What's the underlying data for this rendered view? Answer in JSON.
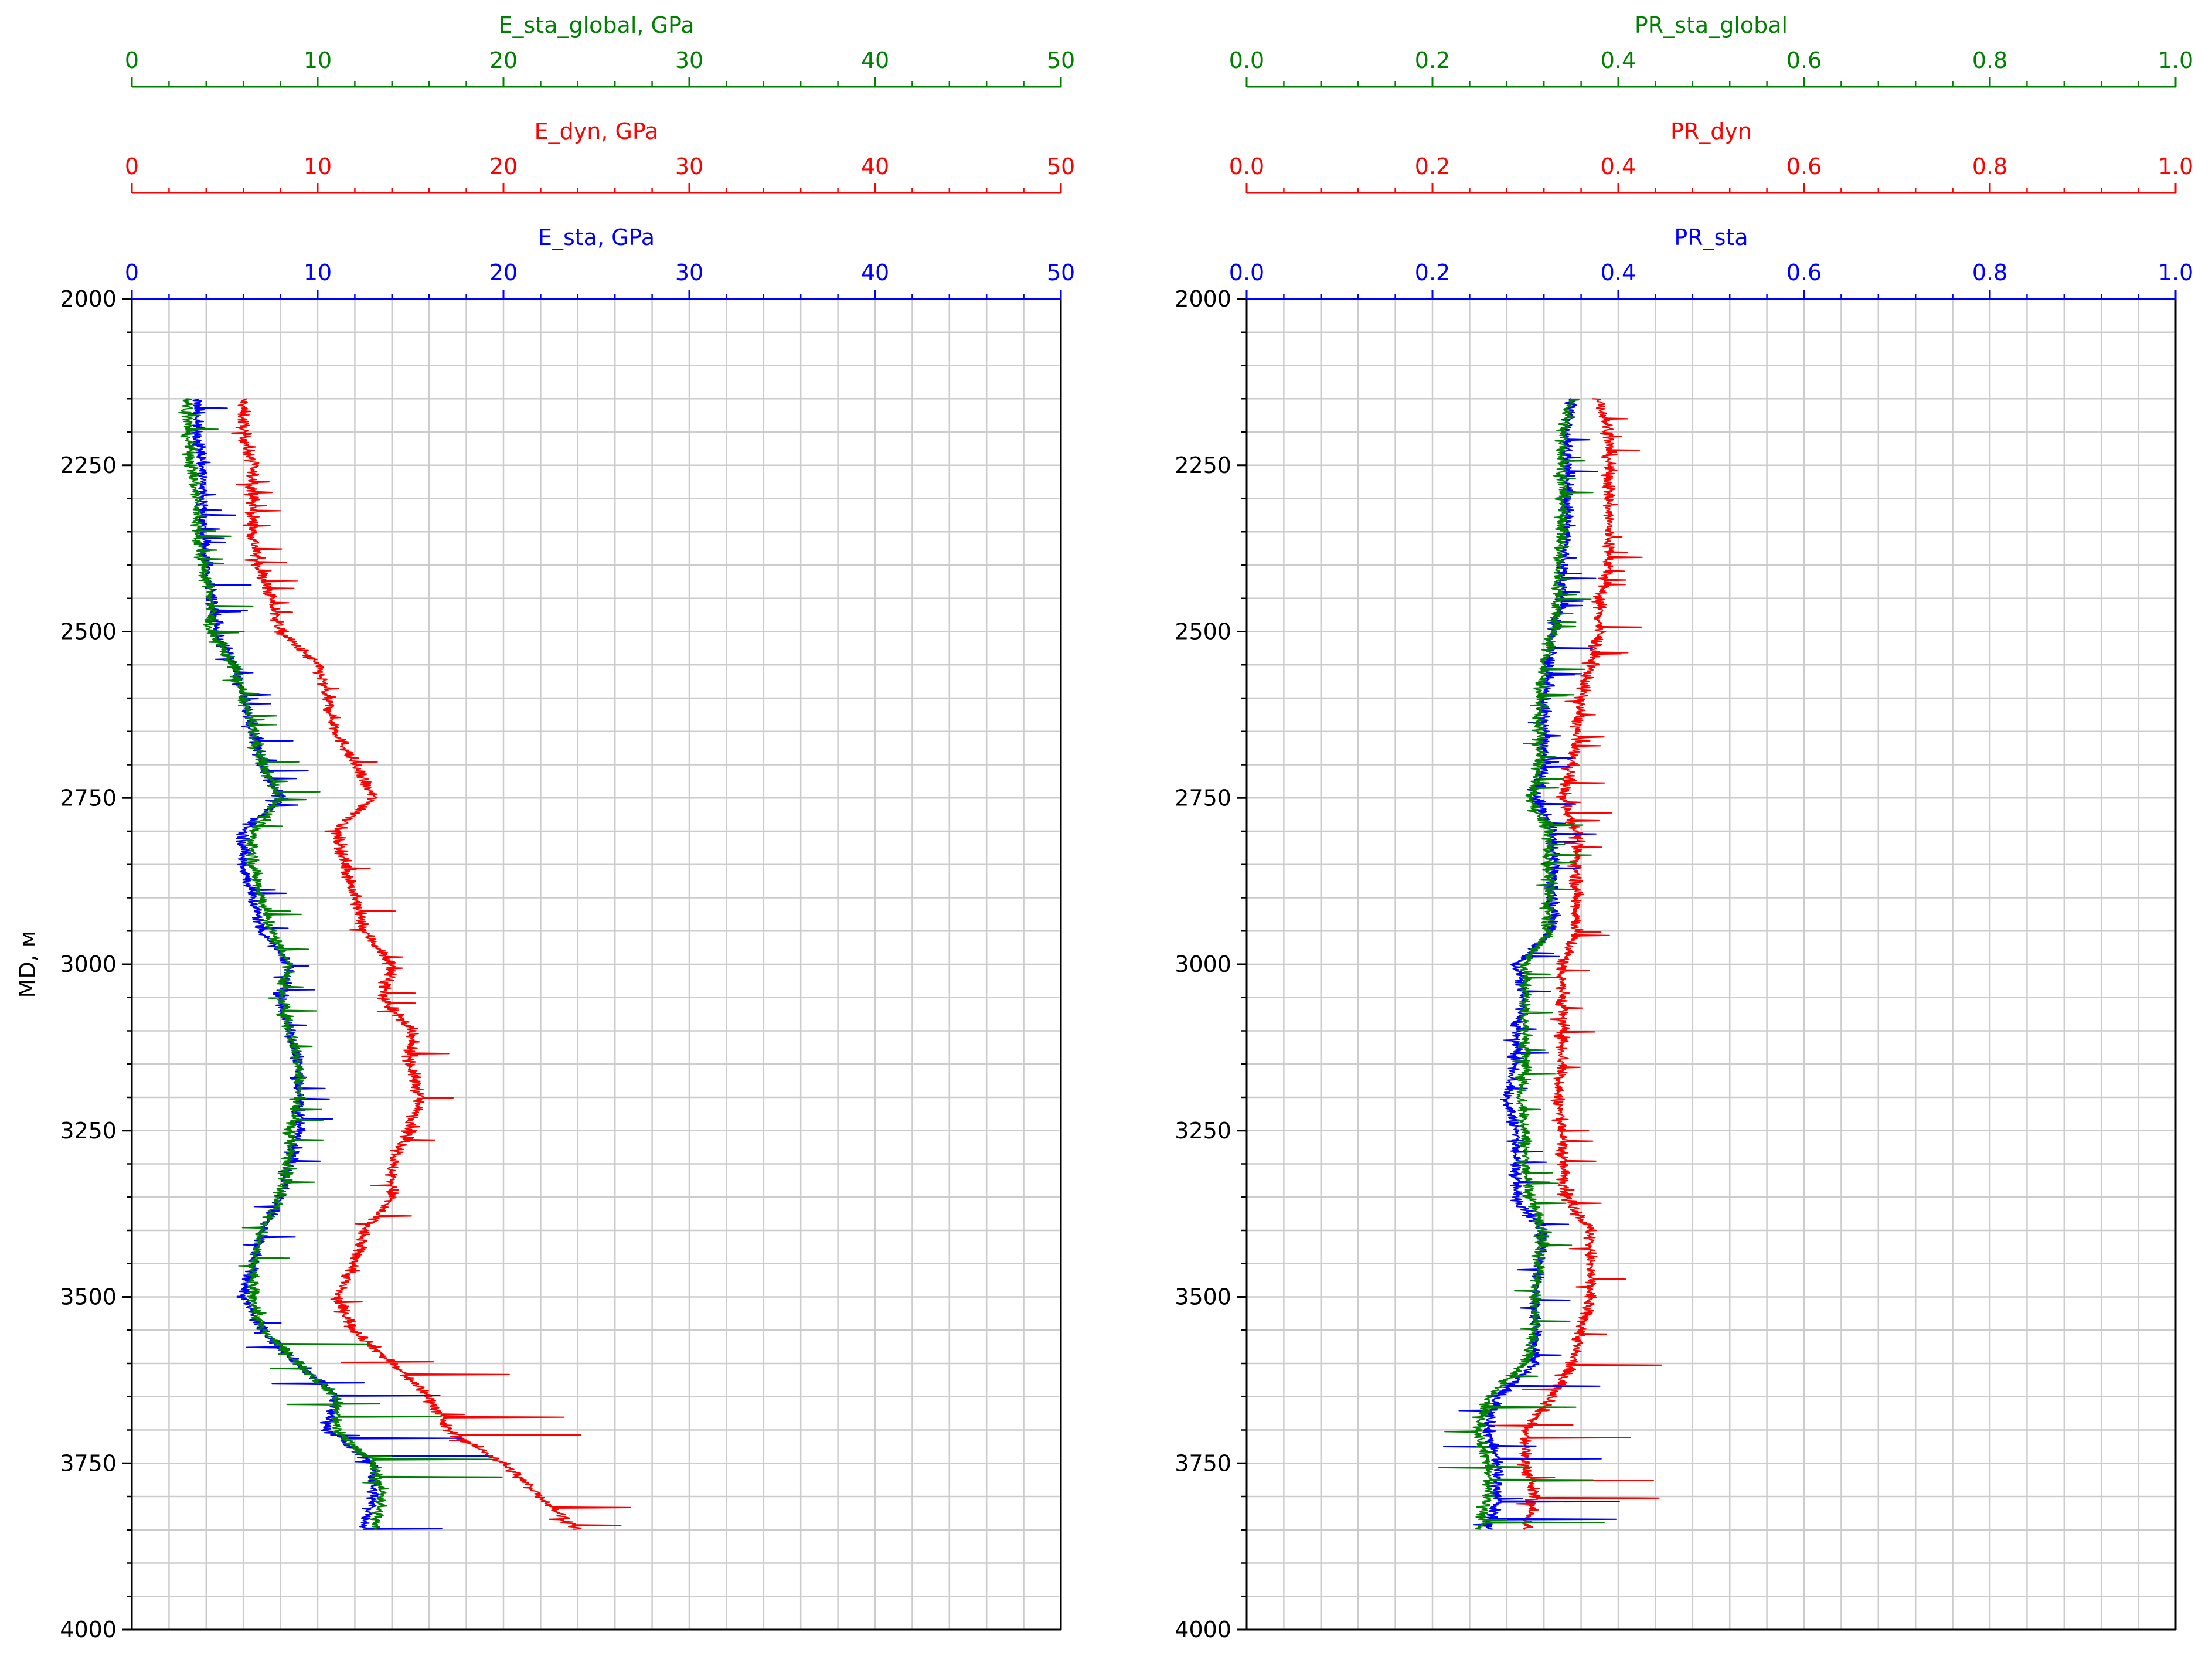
{
  "figure": {
    "y_axis_label": "MD, м",
    "depth_ticks": [
      2000,
      2250,
      2500,
      2750,
      3000,
      3250,
      3500,
      3750,
      4000
    ]
  },
  "colors": {
    "global": "#008000",
    "dyn": "#ff0000",
    "sta": "#0000ff",
    "grid": "#cccccc"
  },
  "chart_data": [
    {
      "type": "line",
      "orientation": "depth-vertical",
      "ylabel": "MD, м",
      "ylim": [
        2000,
        4000
      ],
      "y_inverted": true,
      "grid": true,
      "axes": [
        {
          "label": "E_sta_global, GPa",
          "color": "#008000",
          "xlim": [
            0,
            50
          ],
          "ticks": [
            "0",
            "10",
            "20",
            "30",
            "40",
            "50"
          ]
        },
        {
          "label": "E_dyn, GPa",
          "color": "#ff0000",
          "xlim": [
            0,
            50
          ],
          "ticks": [
            "0",
            "10",
            "20",
            "30",
            "40",
            "50"
          ]
        },
        {
          "label": "E_sta, GPa",
          "color": "#0000ff",
          "xlim": [
            0,
            50
          ],
          "ticks": [
            "0",
            "10",
            "20",
            "30",
            "40",
            "50"
          ]
        }
      ],
      "series": [
        {
          "name": "E_dyn, GPa",
          "color": "#ff0000",
          "depth": [
            2150,
            2200,
            2250,
            2300,
            2350,
            2400,
            2450,
            2500,
            2550,
            2600,
            2650,
            2700,
            2750,
            2800,
            2850,
            2900,
            2950,
            3000,
            3050,
            3100,
            3150,
            3200,
            3250,
            3300,
            3350,
            3400,
            3450,
            3500,
            3550,
            3600,
            3650,
            3700,
            3750,
            3800,
            3850
          ],
          "values": [
            6,
            6,
            6.5,
            6.5,
            6.5,
            6.8,
            7.5,
            8,
            10,
            10.5,
            11,
            12,
            13,
            11,
            11.5,
            12,
            12.5,
            14,
            13.5,
            15,
            15,
            15.5,
            15,
            14,
            14,
            12.5,
            12,
            11,
            12,
            14,
            16,
            17,
            20,
            22,
            24
          ]
        },
        {
          "name": "E_sta, GPa",
          "color": "#0000ff",
          "depth": [
            2150,
            2200,
            2250,
            2300,
            2350,
            2400,
            2450,
            2500,
            2550,
            2600,
            2650,
            2700,
            2750,
            2800,
            2850,
            2900,
            2950,
            3000,
            3050,
            3100,
            3150,
            3200,
            3250,
            3300,
            3350,
            3400,
            3450,
            3500,
            3550,
            3600,
            3650,
            3700,
            3750,
            3800,
            3850
          ],
          "values": [
            3.5,
            3.5,
            3.8,
            3.8,
            3.8,
            4,
            4.3,
            4.5,
            5.5,
            6,
            6.5,
            7,
            8,
            6,
            6,
            6.5,
            7,
            8.5,
            8,
            8.5,
            9,
            9,
            9,
            8.5,
            8,
            7,
            6.5,
            6,
            7,
            9,
            11,
            10.5,
            13,
            13,
            12.5
          ]
        },
        {
          "name": "E_sta_global, GPa",
          "color": "#008000",
          "depth": [
            2150,
            2200,
            2250,
            2300,
            2350,
            2400,
            2450,
            2500,
            2550,
            2600,
            2650,
            2700,
            2750,
            2800,
            2850,
            2900,
            2950,
            3000,
            3050,
            3100,
            3150,
            3200,
            3250,
            3300,
            3350,
            3400,
            3450,
            3500,
            3550,
            3600,
            3650,
            3700,
            3750,
            3800,
            3850
          ],
          "values": [
            3,
            3,
            3.2,
            3.5,
            3.5,
            3.8,
            4.3,
            4.2,
            5.5,
            6,
            6.5,
            7,
            8,
            6.5,
            6.5,
            7,
            7.5,
            8.5,
            8,
            8.5,
            9,
            9,
            8.5,
            8.5,
            8,
            7,
            6.5,
            6.5,
            7,
            9,
            11,
            11,
            13,
            13.5,
            13
          ]
        }
      ]
    },
    {
      "type": "line",
      "orientation": "depth-vertical",
      "ylim": [
        2000,
        4000
      ],
      "y_inverted": true,
      "grid": true,
      "axes": [
        {
          "label": "PR_sta_global",
          "color": "#008000",
          "xlim": [
            0,
            1
          ],
          "ticks": [
            "0.0",
            "0.2",
            "0.4",
            "0.6",
            "0.8",
            "1.0"
          ]
        },
        {
          "label": "PR_dyn",
          "color": "#ff0000",
          "xlim": [
            0,
            1
          ],
          "ticks": [
            "0.0",
            "0.2",
            "0.4",
            "0.6",
            "0.8",
            "1.0"
          ]
        },
        {
          "label": "PR_sta",
          "color": "#0000ff",
          "xlim": [
            0,
            1
          ],
          "ticks": [
            "0.0",
            "0.2",
            "0.4",
            "0.6",
            "0.8",
            "1.0"
          ]
        }
      ],
      "series": [
        {
          "name": "PR_dyn",
          "color": "#ff0000",
          "depth": [
            2150,
            2200,
            2250,
            2300,
            2350,
            2400,
            2450,
            2500,
            2550,
            2600,
            2650,
            2700,
            2750,
            2800,
            2850,
            2900,
            2950,
            3000,
            3050,
            3100,
            3150,
            3200,
            3250,
            3300,
            3350,
            3400,
            3450,
            3500,
            3550,
            3600,
            3650,
            3700,
            3750,
            3800,
            3850
          ],
          "values": [
            0.38,
            0.39,
            0.39,
            0.39,
            0.39,
            0.39,
            0.38,
            0.38,
            0.37,
            0.36,
            0.355,
            0.35,
            0.34,
            0.355,
            0.355,
            0.355,
            0.355,
            0.34,
            0.34,
            0.34,
            0.34,
            0.335,
            0.34,
            0.34,
            0.345,
            0.37,
            0.37,
            0.37,
            0.36,
            0.35,
            0.33,
            0.3,
            0.3,
            0.31,
            0.3
          ]
        },
        {
          "name": "PR_sta",
          "color": "#0000ff",
          "depth": [
            2150,
            2200,
            2250,
            2300,
            2350,
            2400,
            2450,
            2500,
            2550,
            2600,
            2650,
            2700,
            2750,
            2800,
            2850,
            2900,
            2950,
            3000,
            3050,
            3100,
            3150,
            3200,
            3250,
            3300,
            3350,
            3400,
            3450,
            3500,
            3550,
            3600,
            3650,
            3700,
            3750,
            3800,
            3850
          ],
          "values": [
            0.35,
            0.345,
            0.345,
            0.345,
            0.345,
            0.34,
            0.34,
            0.33,
            0.325,
            0.32,
            0.32,
            0.32,
            0.31,
            0.33,
            0.33,
            0.33,
            0.33,
            0.29,
            0.3,
            0.29,
            0.29,
            0.28,
            0.29,
            0.29,
            0.29,
            0.32,
            0.315,
            0.31,
            0.31,
            0.31,
            0.27,
            0.26,
            0.27,
            0.27,
            0.26
          ]
        },
        {
          "name": "PR_sta_global",
          "color": "#008000",
          "depth": [
            2150,
            2200,
            2250,
            2300,
            2350,
            2400,
            2450,
            2500,
            2550,
            2600,
            2650,
            2700,
            2750,
            2800,
            2850,
            2900,
            2950,
            3000,
            3050,
            3100,
            3150,
            3200,
            3250,
            3300,
            3350,
            3400,
            3450,
            3500,
            3550,
            3600,
            3650,
            3700,
            3750,
            3800,
            3850
          ],
          "values": [
            0.35,
            0.34,
            0.34,
            0.34,
            0.34,
            0.335,
            0.335,
            0.33,
            0.32,
            0.315,
            0.315,
            0.315,
            0.305,
            0.325,
            0.325,
            0.325,
            0.325,
            0.3,
            0.3,
            0.3,
            0.3,
            0.295,
            0.3,
            0.3,
            0.305,
            0.32,
            0.315,
            0.31,
            0.31,
            0.3,
            0.26,
            0.25,
            0.26,
            0.26,
            0.25
          ]
        }
      ]
    }
  ]
}
